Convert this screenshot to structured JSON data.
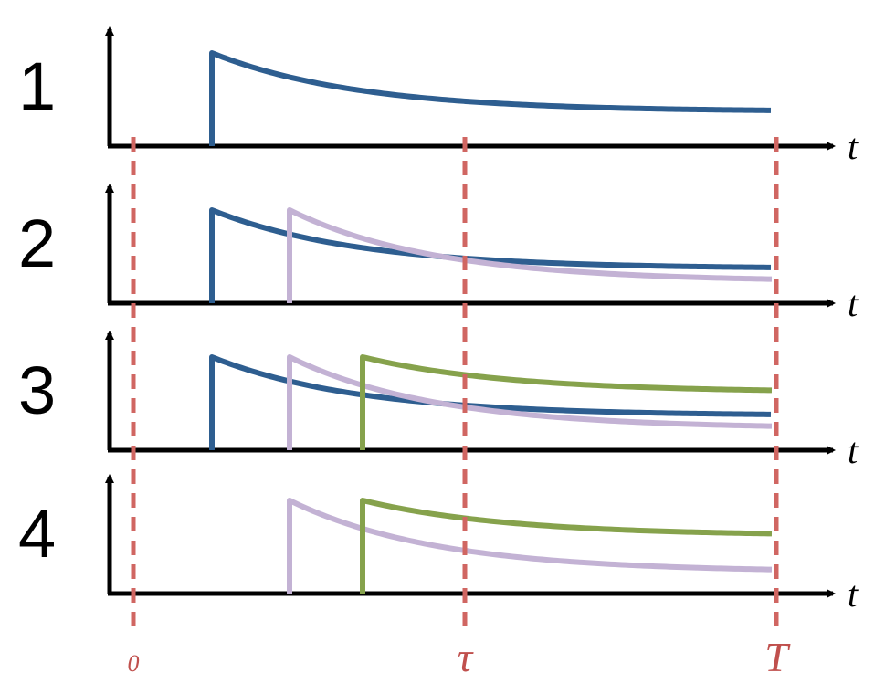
{
  "colors": {
    "axis": "#000000",
    "marker": "#d06662",
    "marker_text": "#c0504d",
    "curve_blue": "#2e5e90",
    "curve_lavender": "#c3b2d4",
    "curve_green": "#86a24c"
  },
  "axis_label": "t",
  "markers": [
    {
      "id": "zero",
      "label": "0"
    },
    {
      "id": "tau",
      "label": "τ"
    },
    {
      "id": "T",
      "label": "T"
    }
  ],
  "rows": [
    {
      "label": "1",
      "pulses": [
        "blue"
      ]
    },
    {
      "label": "2",
      "pulses": [
        "blue",
        "lavender"
      ]
    },
    {
      "label": "3",
      "pulses": [
        "blue",
        "lavender",
        "green"
      ]
    },
    {
      "label": "4",
      "pulses": [
        "lavender",
        "green"
      ]
    }
  ]
}
